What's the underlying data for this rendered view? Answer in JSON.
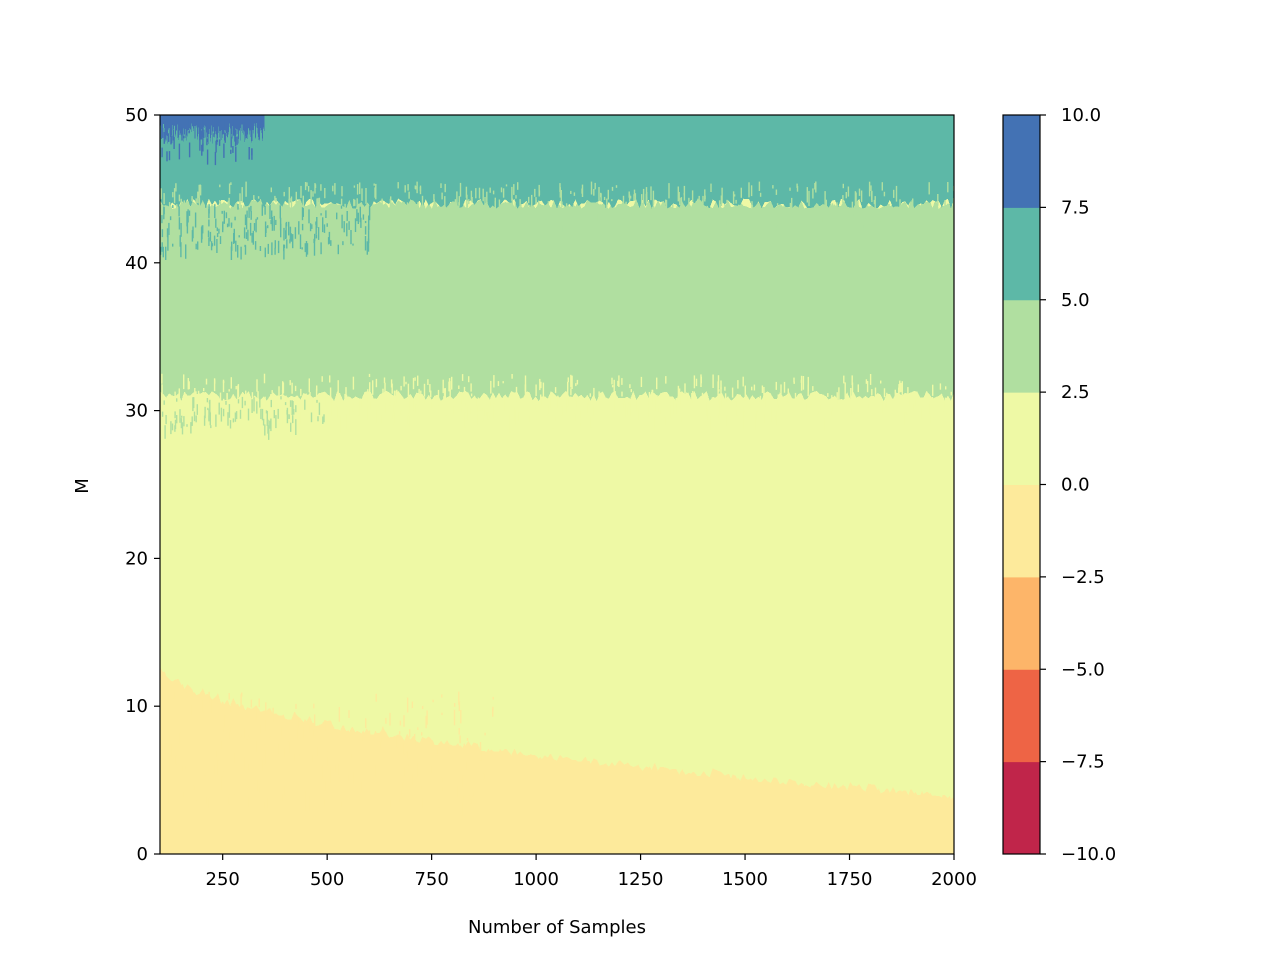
{
  "chart_data": {
    "type": "contourf",
    "title": "",
    "xlabel": "Number of Samples",
    "ylabel": "M",
    "xlim": [
      100,
      2000
    ],
    "ylim": [
      0,
      50
    ],
    "x_ticks": [
      250,
      500,
      750,
      1000,
      1250,
      1500,
      1750,
      2000
    ],
    "y_ticks": [
      0,
      10,
      20,
      30,
      40,
      50
    ],
    "grid": false,
    "colormap": "Spectral",
    "levels": [
      -10.0,
      -7.5,
      -5.0,
      -2.5,
      0.0,
      2.5,
      5.0,
      7.5,
      10.0
    ],
    "level_colors": [
      "#c0254a",
      "#ee6445",
      "#fdb569",
      "#fdea9b",
      "#eef9a5",
      "#b0dfa0",
      "#5db8a7",
      "#4372b4"
    ],
    "colorbar_ticks": [
      "10.0",
      "7.5",
      "5.0",
      "2.5",
      "0.0",
      "−2.5",
      "−5.0",
      "−7.5",
      "−10.0"
    ],
    "regions": [
      {
        "level_range": [
          -2.5,
          0.0
        ],
        "M_from": 0,
        "M_to_at_start": 13,
        "M_to_at_end": 4
      },
      {
        "level_range": [
          0.0,
          2.5
        ],
        "M_from_at_start": 13,
        "M_from_at_end": 4,
        "M_to": 31
      },
      {
        "level_range": [
          2.5,
          5.0
        ],
        "M_from": 31,
        "M_to": 44
      },
      {
        "level_range": [
          5.0,
          7.5
        ],
        "M_from": 44,
        "M_to": 50
      },
      {
        "level_range": [
          7.5,
          10.0
        ],
        "M_from": 48,
        "M_to": 50,
        "samples_range": [
          100,
          350
        ]
      }
    ]
  }
}
